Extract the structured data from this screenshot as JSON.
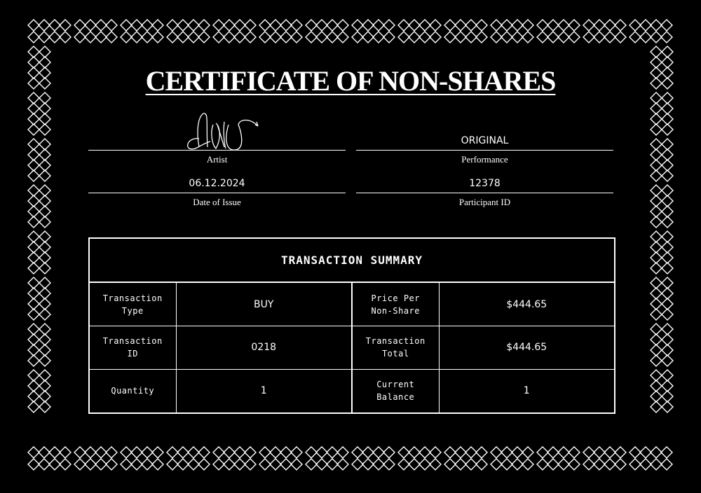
{
  "title": "CERTIFICATE OF NON-SHARES",
  "signature_name": "SHOMS",
  "fields": {
    "artist": {
      "value": "",
      "label": "Artist"
    },
    "performance": {
      "value": "ORIGINAL",
      "label": "Performance"
    },
    "date": {
      "value": "06.12.2024",
      "label": "Date of Issue"
    },
    "participant": {
      "value": "12378",
      "label": "Participant ID"
    }
  },
  "summary": {
    "title": "TRANSACTION SUMMARY",
    "rows": [
      {
        "k1": "Transaction\nType",
        "v1": "BUY",
        "k2": "Price Per\nNon-Share",
        "v2": "$444.65"
      },
      {
        "k1": "Transaction\nID",
        "v1": "0218",
        "k2": "Transaction\nTotal",
        "v2": "$444.65"
      },
      {
        "k1": "Quantity",
        "v1": "1",
        "k2": "Current\nBalance",
        "v2": "1"
      }
    ]
  },
  "colors": {
    "background": "#000000",
    "foreground": "#ffffff"
  }
}
